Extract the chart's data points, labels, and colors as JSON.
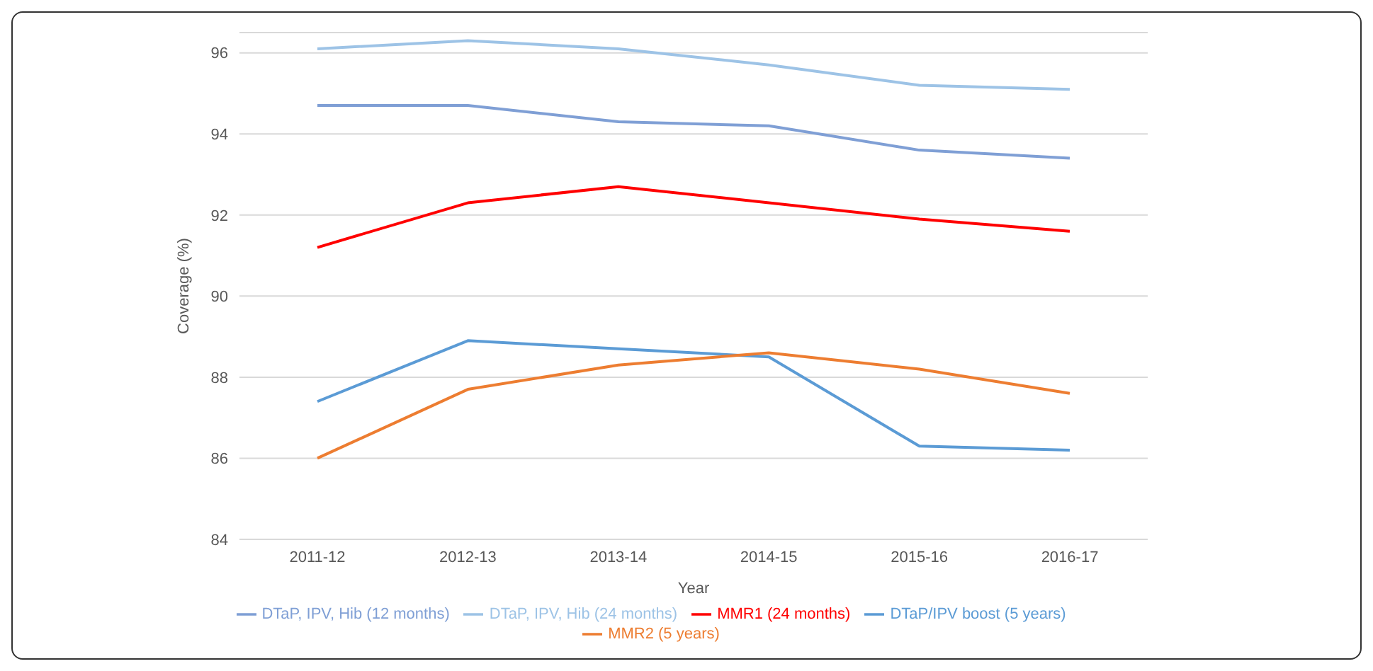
{
  "chart_data": {
    "type": "line",
    "xlabel": "Year",
    "ylabel": "Coverage (%)",
    "categories": [
      "2011-12",
      "2012-13",
      "2013-14",
      "2014-15",
      "2015-16",
      "2016-17"
    ],
    "series": [
      {
        "name": "DTaP, IPV, Hib (12 months)",
        "color": "#7f9fd5",
        "values": [
          94.7,
          94.7,
          94.3,
          94.2,
          93.6,
          93.4
        ]
      },
      {
        "name": "DTaP, IPV, Hib (24 months)",
        "color": "#9dc3e6",
        "values": [
          96.1,
          96.3,
          96.1,
          95.7,
          95.2,
          95.1
        ]
      },
      {
        "name": "MMR1 (24 months)",
        "color": "#ff0000",
        "values": [
          91.2,
          92.3,
          92.7,
          92.3,
          91.9,
          91.6
        ]
      },
      {
        "name": "DTaP/IPV boost (5 years)",
        "color": "#5b9bd5",
        "values": [
          87.4,
          88.9,
          88.7,
          88.5,
          86.3,
          86.2
        ]
      },
      {
        "name": "MMR2 (5 years)",
        "color": "#ed7d31",
        "values": [
          86.0,
          87.7,
          88.3,
          88.6,
          88.2,
          87.6
        ]
      }
    ],
    "ylim": [
      84,
      96.5
    ],
    "yticks": [
      84,
      86,
      88,
      90,
      92,
      94,
      96
    ],
    "grid": "y",
    "legend": "bottom",
    "marker": "none",
    "line_style": "solid"
  }
}
